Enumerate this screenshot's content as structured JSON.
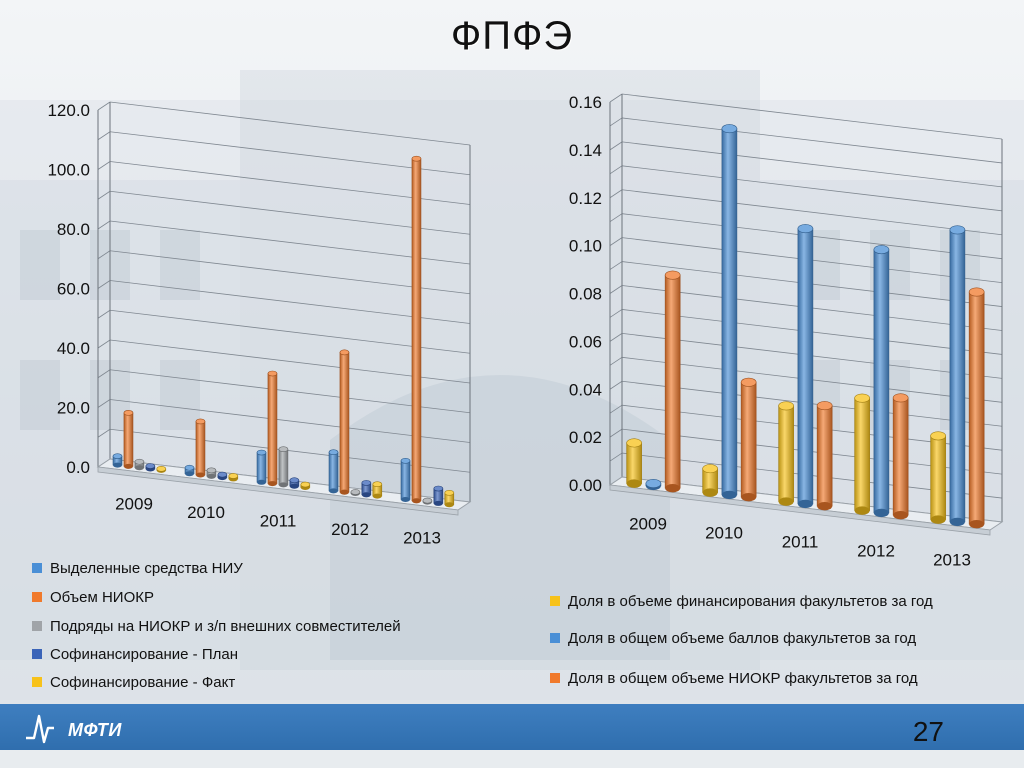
{
  "slide": {
    "title": "ФПФЭ",
    "page_number": "27",
    "logo_text": "МФТИ"
  },
  "chart_data": [
    {
      "type": "bar",
      "categories": [
        "2009",
        "2010",
        "2011",
        "2012",
        "2013"
      ],
      "yticks": [
        "0.0",
        "20.0",
        "40.0",
        "60.0",
        "80.0",
        "100.0",
        "120.0"
      ],
      "ylim": [
        0,
        120
      ],
      "series": [
        {
          "name": "Выделенные средства НИУ",
          "color": "#4a8fd6",
          "values": [
            3,
            2,
            10,
            13,
            13
          ]
        },
        {
          "name": "Объем НИОКР",
          "color": "#f07a2c",
          "values": [
            18,
            18,
            37,
            47,
            115
          ]
        },
        {
          "name": "Подряды на НИОКР и з/п внешних совместителей",
          "color": "#a0a4a8",
          "values": [
            2,
            2,
            12,
            0,
            0
          ]
        },
        {
          "name": "Софинансирование - План",
          "color": "#3a64b8",
          "values": [
            1,
            1,
            2,
            4,
            5
          ]
        },
        {
          "name": "Софинансирование - Факт",
          "color": "#f7c21a",
          "values": [
            0.5,
            1,
            1,
            4,
            4
          ]
        }
      ]
    },
    {
      "type": "bar",
      "categories": [
        "2009",
        "2010",
        "2011",
        "2012",
        "2013"
      ],
      "yticks": [
        "0.00",
        "0.02",
        "0.04",
        "0.06",
        "0.08",
        "0.10",
        "0.12",
        "0.14",
        "0.16"
      ],
      "ylim": [
        0,
        0.16
      ],
      "series": [
        {
          "name": "Доля в объеме финансирования факультетов за год",
          "color": "#f7c21a",
          "values": [
            0.017,
            0.01,
            0.04,
            0.047,
            0.035
          ]
        },
        {
          "name": "Доля в общем объеме баллов факультетов за год",
          "color": "#4a8fd6",
          "values": [
            0.001,
            0.153,
            0.115,
            0.11,
            0.122
          ]
        },
        {
          "name": "Доля в общем объеме НИОКР факультетов за год",
          "color": "#f07a2c",
          "values": [
            0.089,
            0.048,
            0.042,
            0.049,
            0.097
          ]
        }
      ]
    }
  ]
}
